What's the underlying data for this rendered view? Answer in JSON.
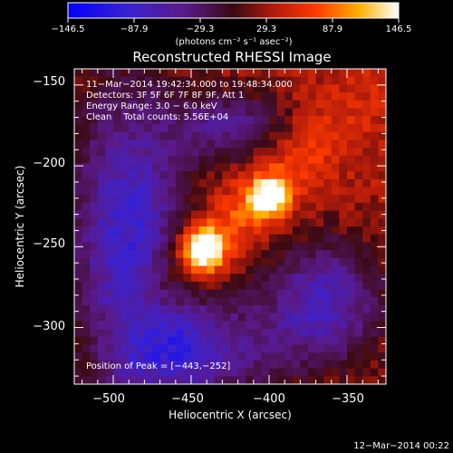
{
  "chart_data": {
    "type": "heatmap",
    "title": "Reconstructed RHESSI Image",
    "xlabel": "Heliocentric X (arcsec)",
    "ylabel": "Heliocentric Y (arcsec)",
    "xlim": [
      -525,
      -325
    ],
    "ylim": [
      -335,
      -140
    ],
    "xticks": [
      -500,
      -450,
      -400,
      -350
    ],
    "yticks": [
      -150,
      -200,
      -250,
      -300
    ],
    "xtick_labels": [
      "−500",
      "−450",
      "−400",
      "−350"
    ],
    "ytick_labels": [
      "−150",
      "−200",
      "−250",
      "−300"
    ],
    "colorbar": {
      "min": -146.5,
      "max": 146.5,
      "ticks": [
        -146.5,
        -87.9,
        -29.3,
        29.3,
        87.9,
        146.5
      ],
      "tick_labels": [
        "−146.5",
        "−87.9",
        "−29.3",
        "29.3",
        "87.9",
        "146.5"
      ],
      "units": "(photons cm⁻² s⁻¹ asec⁻²)",
      "colormap": "blue-purple-red-yellow-white"
    },
    "annotations": [
      "11−Mar−2014 19:42:34.000 to 19:48:34.000",
      "Detectors: 3F 5F 6F 7F 8F 9F, Att 1",
      "Energy Range: 3.0 − 6.0 keV",
      "Clean    Total counts: 5.56E+04"
    ],
    "peak_label": "Position of Peak = [−443,−252]",
    "sources": [
      {
        "x": -443,
        "y": -252,
        "intensity": 146.5
      },
      {
        "x": -400,
        "y": -220,
        "intensity": 110
      }
    ],
    "footer": "12−Mar−2014 00:22"
  }
}
